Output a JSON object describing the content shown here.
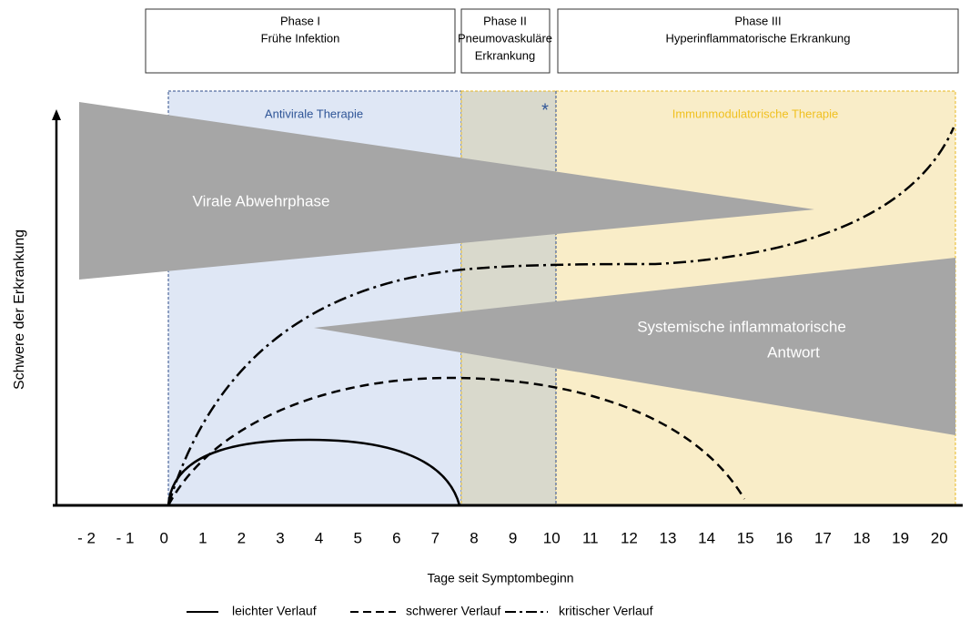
{
  "phases": [
    {
      "lines": [
        "Phase I",
        "Frühe Infektion"
      ]
    },
    {
      "lines": [
        "Phase II",
        "Pneumovaskuläre",
        "Erkrankung"
      ]
    },
    {
      "lines": [
        "Phase III",
        "Hyperinflammatorische Erkrankung"
      ]
    }
  ],
  "therapies": {
    "antiviral": "Antivirale Therapie",
    "marker": "*",
    "immunomodulatory": "Immunmodulatorische Therapie"
  },
  "shapes": {
    "viral": "Virale Abwehrphase",
    "systemic": [
      "Systemische inflammatorische",
      "Antwort"
    ]
  },
  "axes": {
    "y_label": "Schwere der Erkrankung",
    "x_label": "Tage seit Symptombeginn",
    "x_ticks": [
      "- 2",
      "- 1",
      "0",
      "1",
      "2",
      "3",
      "4",
      "5",
      "6",
      "7",
      "8",
      "9",
      "10",
      "11",
      "12",
      "13",
      "14",
      "15",
      "16",
      "17",
      "18",
      "19",
      "20"
    ]
  },
  "legend": [
    "leichter Verlauf",
    "schwerer Verlauf",
    "kritischer Verlauf"
  ]
}
